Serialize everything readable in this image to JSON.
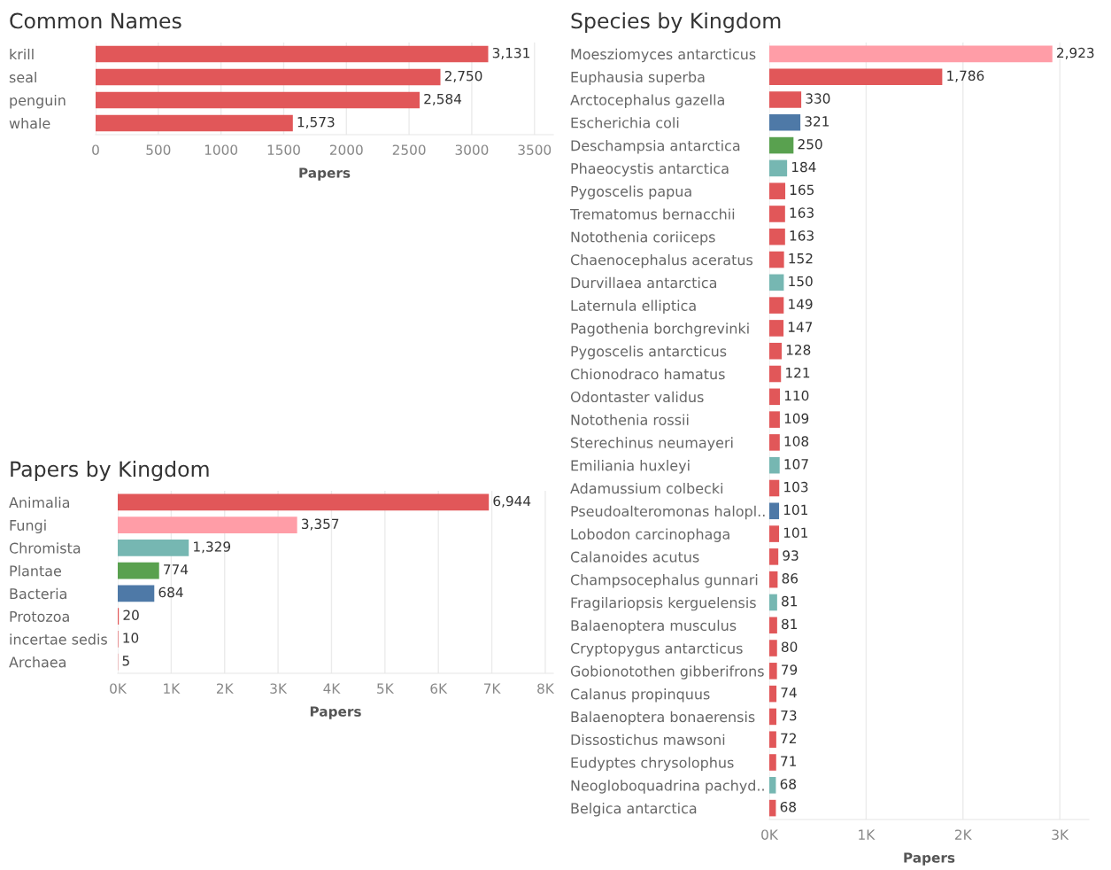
{
  "chart_data": [
    {
      "type": "bar",
      "orientation": "horizontal",
      "title": "Common Names",
      "xlabel": "Papers",
      "categories": [
        "krill",
        "seal",
        "penguin",
        "whale"
      ],
      "values": [
        3131,
        2750,
        2584,
        1573
      ],
      "color": "#e15759",
      "value_labels": [
        "3,131",
        "2,750",
        "2,584",
        "1,573"
      ],
      "xlim": [
        0,
        3650
      ],
      "xticks": [
        0,
        500,
        1000,
        1500,
        2000,
        2500,
        3000,
        3500
      ],
      "grid": "x"
    },
    {
      "type": "bar",
      "orientation": "horizontal",
      "title": "Papers by Kingdom",
      "xlabel": "Papers",
      "categories": [
        "Animalia",
        "Fungi",
        "Chromista",
        "Plantae",
        "Bacteria",
        "Protozoa",
        "incertae sedis",
        "Archaea"
      ],
      "values": [
        6944,
        3357,
        1329,
        774,
        684,
        20,
        10,
        5
      ],
      "colors": [
        "#e15759",
        "#ff9da7",
        "#76b7b2",
        "#59a14f",
        "#4e79a7",
        "#e15759",
        "#e15759",
        "#e15759"
      ],
      "value_labels": [
        "6,944",
        "3,357",
        "1,329",
        "774",
        "684",
        "20",
        "10",
        "5"
      ],
      "xlim": [
        0,
        8150
      ],
      "xticks": [
        {
          "value": 0,
          "label": "0K"
        },
        {
          "value": 1000,
          "label": "1K"
        },
        {
          "value": 2000,
          "label": "2K"
        },
        {
          "value": 3000,
          "label": "3K"
        },
        {
          "value": 4000,
          "label": "4K"
        },
        {
          "value": 5000,
          "label": "5K"
        },
        {
          "value": 6000,
          "label": "6K"
        },
        {
          "value": 7000,
          "label": "7K"
        },
        {
          "value": 8000,
          "label": "8K"
        }
      ],
      "grid": "x"
    },
    {
      "type": "bar",
      "orientation": "horizontal",
      "title": "Species by Kingdom",
      "xlabel": "Papers",
      "categories": [
        "Moesziomyces antarcticus",
        "Euphausia superba",
        "Arctocephalus gazella",
        "Escherichia coli",
        "Deschampsia antarctica",
        "Phaeocystis antarctica",
        "Pygoscelis papua",
        "Trematomus bernacchii",
        "Notothenia coriiceps",
        "Chaenocephalus aceratus",
        "Durvillaea antarctica",
        "Laternula elliptica",
        "Pagothenia borchgrevinki",
        "Pygoscelis antarcticus",
        "Chionodraco hamatus",
        "Odontaster validus",
        "Notothenia rossii",
        "Sterechinus neumayeri",
        "Emiliania huxleyi",
        "Adamussium colbecki",
        "Pseudoalteromonas halopl..",
        "Lobodon carcinophaga",
        "Calanoides acutus",
        "Champsocephalus gunnari",
        "Fragilariopsis kerguelensis",
        "Balaenoptera musculus",
        "Cryptopygus antarcticus",
        "Gobionotothen gibberifrons",
        "Calanus propinquus",
        "Balaenoptera bonaerensis",
        "Dissostichus mawsoni",
        "Eudyptes chrysolophus",
        "Neogloboquadrina pachyd..",
        "Belgica antarctica"
      ],
      "values": [
        2923,
        1786,
        330,
        321,
        250,
        184,
        165,
        163,
        163,
        152,
        150,
        149,
        147,
        128,
        121,
        110,
        109,
        108,
        107,
        103,
        101,
        101,
        93,
        86,
        81,
        81,
        80,
        79,
        74,
        73,
        72,
        71,
        68,
        68
      ],
      "colors": [
        "#ff9da7",
        "#e15759",
        "#e15759",
        "#4e79a7",
        "#59a14f",
        "#76b7b2",
        "#e15759",
        "#e15759",
        "#e15759",
        "#e15759",
        "#76b7b2",
        "#e15759",
        "#e15759",
        "#e15759",
        "#e15759",
        "#e15759",
        "#e15759",
        "#e15759",
        "#76b7b2",
        "#e15759",
        "#4e79a7",
        "#e15759",
        "#e15759",
        "#e15759",
        "#76b7b2",
        "#e15759",
        "#e15759",
        "#e15759",
        "#e15759",
        "#e15759",
        "#e15759",
        "#e15759",
        "#76b7b2",
        "#e15759"
      ],
      "value_labels": [
        "2,923",
        "1,786",
        "330",
        "321",
        "250",
        "184",
        "165",
        "163",
        "163",
        "152",
        "150",
        "149",
        "147",
        "128",
        "121",
        "110",
        "109",
        "108",
        "107",
        "103",
        "101",
        "101",
        "93",
        "86",
        "81",
        "81",
        "80",
        "79",
        "74",
        "73",
        "72",
        "71",
        "68",
        "68"
      ],
      "xlim": [
        0,
        3300
      ],
      "xticks": [
        {
          "value": 0,
          "label": "0K"
        },
        {
          "value": 1000,
          "label": "1K"
        },
        {
          "value": 2000,
          "label": "2K"
        },
        {
          "value": 3000,
          "label": "3K"
        }
      ],
      "grid": "x"
    }
  ]
}
